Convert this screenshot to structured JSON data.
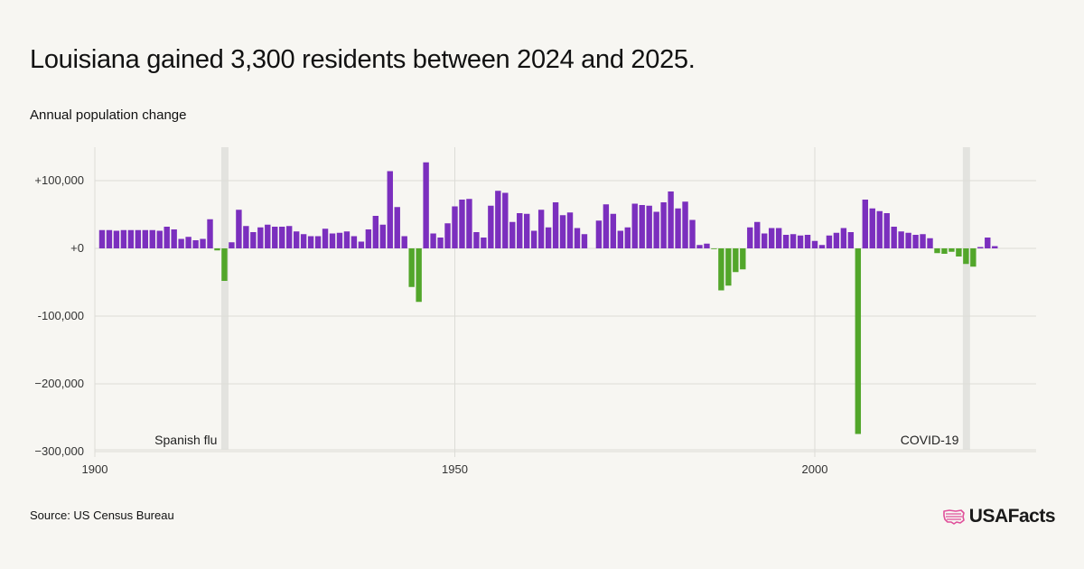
{
  "title": "Louisiana gained 3,300 residents between 2024 and 2025.",
  "subtitle": "Annual population change",
  "source": "Source: US Census Bureau",
  "brand": "USAFacts",
  "colors": {
    "positive": "#7b2fbe",
    "negative": "#52a62a",
    "highlight_band": "#e3e3df",
    "grid": "#dcdcd7",
    "background": "#f7f6f2",
    "logo": "#e04f9a"
  },
  "chart_data": {
    "type": "bar",
    "ylabel": "Annual population change",
    "xlim": [
      1900,
      2031
    ],
    "ylim": [
      -300000,
      150000
    ],
    "y_ticks": [
      {
        "value": 100000,
        "label": "+100,000"
      },
      {
        "value": 0,
        "label": "+0"
      },
      {
        "value": -100000,
        "label": "-100,000"
      },
      {
        "value": -200000,
        "label": "−200,000"
      },
      {
        "value": -300000,
        "label": "−300,000"
      }
    ],
    "x_ticks": [
      {
        "value": 1900,
        "label": "1900"
      },
      {
        "value": 1950,
        "label": "1950"
      },
      {
        "value": 2000,
        "label": "2000"
      }
    ],
    "annotations": [
      {
        "label": "Spanish flu",
        "year": 1918
      },
      {
        "label": "COVID-19",
        "year": 2021
      }
    ],
    "x": [
      1901,
      1902,
      1903,
      1904,
      1905,
      1906,
      1907,
      1908,
      1909,
      1910,
      1911,
      1912,
      1913,
      1914,
      1915,
      1916,
      1917,
      1918,
      1919,
      1920,
      1921,
      1922,
      1923,
      1924,
      1925,
      1926,
      1927,
      1928,
      1929,
      1930,
      1931,
      1932,
      1933,
      1934,
      1935,
      1936,
      1937,
      1938,
      1939,
      1940,
      1941,
      1942,
      1943,
      1944,
      1945,
      1946,
      1947,
      1948,
      1949,
      1950,
      1951,
      1952,
      1953,
      1954,
      1955,
      1956,
      1957,
      1958,
      1959,
      1960,
      1961,
      1962,
      1963,
      1964,
      1965,
      1966,
      1967,
      1968,
      1969,
      1970,
      1971,
      1972,
      1973,
      1974,
      1975,
      1976,
      1977,
      1978,
      1979,
      1980,
      1981,
      1982,
      1983,
      1984,
      1985,
      1986,
      1987,
      1988,
      1989,
      1990,
      1991,
      1992,
      1993,
      1994,
      1995,
      1996,
      1997,
      1998,
      1999,
      2000,
      2001,
      2002,
      2003,
      2004,
      2005,
      2006,
      2007,
      2008,
      2009,
      2010,
      2011,
      2012,
      2013,
      2014,
      2015,
      2016,
      2017,
      2018,
      2019,
      2020,
      2021,
      2022,
      2023,
      2024,
      2025
    ],
    "values": [
      27000,
      27000,
      26000,
      27000,
      27000,
      27000,
      27000,
      27000,
      26000,
      32000,
      28000,
      14000,
      17000,
      12000,
      14000,
      43000,
      -3000,
      -48000,
      9000,
      57000,
      33000,
      24000,
      31000,
      35000,
      32000,
      32000,
      33000,
      25000,
      21000,
      18000,
      18000,
      29000,
      22000,
      23000,
      25000,
      18000,
      10000,
      28000,
      48000,
      35000,
      114000,
      61000,
      18000,
      -57000,
      -79000,
      127000,
      22000,
      16000,
      37000,
      62000,
      72000,
      73000,
      24000,
      16000,
      63000,
      85000,
      82000,
      39000,
      52000,
      51000,
      26000,
      57000,
      31000,
      68000,
      49000,
      53000,
      30000,
      21000,
      0,
      41000,
      65000,
      51000,
      26000,
      31000,
      66000,
      64000,
      63000,
      54000,
      68000,
      84000,
      59000,
      69000,
      42000,
      5000,
      7000,
      -1000,
      -62000,
      -55000,
      -35000,
      -31000,
      31000,
      39000,
      22000,
      30000,
      30000,
      20000,
      21000,
      19000,
      20000,
      11000,
      5000,
      19000,
      23000,
      30000,
      24000,
      -274000,
      72000,
      59000,
      55000,
      52000,
      32000,
      25000,
      23000,
      20000,
      21000,
      15000,
      -7000,
      -8000,
      -5000,
      -12000,
      -23000,
      -27000,
      2000,
      16000,
      3300
    ]
  }
}
